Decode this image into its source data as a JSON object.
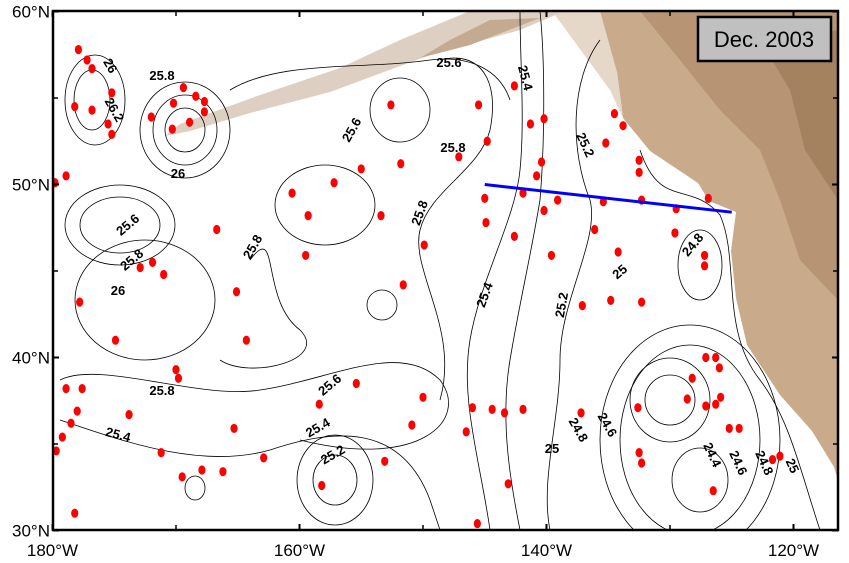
{
  "title": "Dec. 2003",
  "axes": {
    "x_ticks": [
      {
        "lon": -180,
        "label": "180°W"
      },
      {
        "lon": -160,
        "label": "160°W"
      },
      {
        "lon": -140,
        "label": "140°W"
      },
      {
        "lon": -120,
        "label": "120°W"
      }
    ],
    "y_ticks": [
      {
        "lat": 60,
        "label": "60°N"
      },
      {
        "lat": 50,
        "label": "50°N"
      },
      {
        "lat": 40,
        "label": "40°N"
      },
      {
        "lat": 30,
        "label": "30°N"
      }
    ],
    "lon_range": [
      -180,
      -116.4
    ],
    "lat_range": [
      30,
      60
    ]
  },
  "contour_labels": [
    "26",
    "25.8",
    "26.2",
    "26",
    "25.6",
    "25.8",
    "26",
    "25.8",
    "25.4",
    "25.6",
    "25.8",
    "25.6",
    "25.4",
    "25.2",
    "25.8",
    "25.8",
    "25.4",
    "25.2",
    "25",
    "24.8",
    "25.6",
    "25.4",
    "25.2",
    "25",
    "24.8",
    "24.6",
    "24.4",
    "24.6",
    "24.8",
    "25"
  ],
  "section_line": {
    "color": "#0000ff",
    "start": [
      -145,
      50.0
    ],
    "end": [
      -125,
      48.4
    ]
  },
  "colors": {
    "float_dots": "#ff0000",
    "land": "#c8a98a",
    "land_dark": "#a8825e"
  },
  "float_positions": [
    [
      -177.9,
      57.8
    ],
    [
      -177.2,
      57.2
    ],
    [
      -176.8,
      56.7
    ],
    [
      -178.2,
      54.5
    ],
    [
      -176.8,
      54.3
    ],
    [
      -175.2,
      55.3
    ],
    [
      -175.5,
      53.5
    ],
    [
      -175.2,
      52.9
    ],
    [
      -179.8,
      50.1
    ],
    [
      -178.9,
      50.5
    ],
    [
      -172.0,
      53.9
    ],
    [
      -170.2,
      54.7
    ],
    [
      -169.4,
      55.6
    ],
    [
      -168.4,
      55.1
    ],
    [
      -167.7,
      54.8
    ],
    [
      -170.3,
      53.2
    ],
    [
      -168.9,
      53.6
    ],
    [
      -167.7,
      54.2
    ],
    [
      -174.9,
      41.0
    ],
    [
      -177.8,
      43.2
    ],
    [
      -172.9,
      45.2
    ],
    [
      -171.9,
      45.5
    ],
    [
      -171.0,
      44.8
    ],
    [
      -166.7,
      47.4
    ],
    [
      -165.1,
      43.8
    ],
    [
      -164.3,
      41.0
    ],
    [
      -170.0,
      39.3
    ],
    [
      -169.8,
      38.8
    ],
    [
      -178.9,
      38.2
    ],
    [
      -177.6,
      38.2
    ],
    [
      -178.0,
      36.9
    ],
    [
      -178.5,
      36.2
    ],
    [
      -179.2,
      35.4
    ],
    [
      -179.7,
      34.6
    ],
    [
      -173.8,
      36.7
    ],
    [
      -171.2,
      34.5
    ],
    [
      -169.5,
      33.1
    ],
    [
      -167.9,
      33.5
    ],
    [
      -166.2,
      33.4
    ],
    [
      -165.3,
      35.9
    ],
    [
      -162.9,
      34.2
    ],
    [
      -178.2,
      31.0
    ],
    [
      -160.6,
      49.5
    ],
    [
      -159.3,
      48.2
    ],
    [
      -157.2,
      50.1
    ],
    [
      -159.5,
      45.9
    ],
    [
      -155.0,
      50.9
    ],
    [
      -152.6,
      54.6
    ],
    [
      -151.8,
      51.2
    ],
    [
      -153.4,
      48.2
    ],
    [
      -149.9,
      46.5
    ],
    [
      -151.6,
      44.2
    ],
    [
      -155.4,
      38.5
    ],
    [
      -158.4,
      37.3
    ],
    [
      -150.0,
      37.7
    ],
    [
      -150.9,
      36.1
    ],
    [
      -153.1,
      34.0
    ],
    [
      -158.2,
      32.6
    ],
    [
      -147.1,
      51.6
    ],
    [
      -145.5,
      54.6
    ],
    [
      -144.8,
      52.5
    ],
    [
      -145.0,
      49.2
    ],
    [
      -144.9,
      47.8
    ],
    [
      -142.6,
      55.7
    ],
    [
      -141.3,
      53.5
    ],
    [
      -140.2,
      53.8
    ],
    [
      -140.4,
      51.3
    ],
    [
      -140.8,
      50.5
    ],
    [
      -141.9,
      49.5
    ],
    [
      -142.6,
      47.0
    ],
    [
      -140.2,
      48.5
    ],
    [
      -139.1,
      49.1
    ],
    [
      -139.6,
      45.9
    ],
    [
      -146.0,
      37.1
    ],
    [
      -144.4,
      37.0
    ],
    [
      -143.4,
      36.8
    ],
    [
      -141.9,
      37.0
    ],
    [
      -146.5,
      35.7
    ],
    [
      -143.1,
      32.7
    ],
    [
      -145.6,
      30.4
    ],
    [
      -135.4,
      49.0
    ],
    [
      -136.1,
      47.4
    ],
    [
      -134.2,
      46.1
    ],
    [
      -137.1,
      43.0
    ],
    [
      -134.8,
      43.3
    ],
    [
      -132.3,
      43.2
    ],
    [
      -134.5,
      54.1
    ],
    [
      -133.8,
      53.4
    ],
    [
      -135.2,
      52.4
    ],
    [
      -132.5,
      51.4
    ],
    [
      -132.5,
      50.7
    ],
    [
      -132.3,
      49.1
    ],
    [
      -129.5,
      48.6
    ],
    [
      -129.6,
      47.2
    ],
    [
      -126.9,
      49.2
    ],
    [
      -127.2,
      45.9
    ],
    [
      -127.2,
      45.3
    ],
    [
      -137.2,
      36.8
    ],
    [
      -132.6,
      37.1
    ],
    [
      -128.6,
      37.6
    ],
    [
      -128.2,
      38.8
    ],
    [
      -127.1,
      40.0
    ],
    [
      -126.3,
      40.0
    ],
    [
      -126.0,
      39.4
    ],
    [
      -125.9,
      37.7
    ],
    [
      -127.1,
      37.2
    ],
    [
      -126.3,
      37.3
    ],
    [
      -125.2,
      35.9
    ],
    [
      -124.4,
      35.9
    ],
    [
      -132.5,
      34.5
    ],
    [
      -132.3,
      33.9
    ],
    [
      -126.5,
      32.3
    ],
    [
      -121.7,
      34.1
    ],
    [
      -121.1,
      34.3
    ]
  ]
}
